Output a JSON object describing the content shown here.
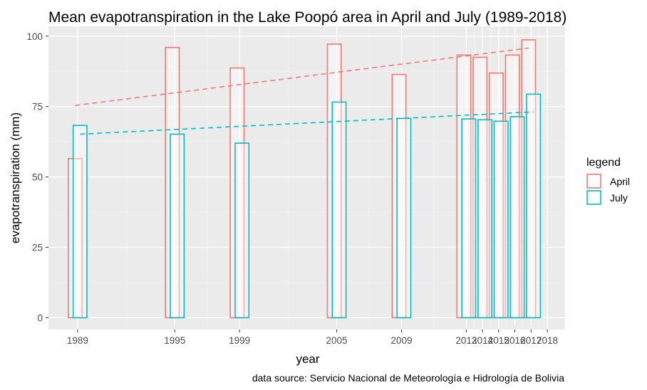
{
  "chart_data": {
    "type": "bar",
    "title": "Mean evapotranspiration in the Lake Poopó area in April and July (1989-2018)",
    "xlabel": "year",
    "ylabel": "evapotranspiration (mm)",
    "caption": "data source: Servicio Nacional de Meteorología e Hidrología de Bolivia",
    "x": [
      1989,
      1995,
      1999,
      2005,
      2009,
      2013,
      2014,
      2015,
      2016,
      2017
    ],
    "xticks": [
      1989,
      1995,
      1999,
      2005,
      2009,
      2013,
      2014,
      2015,
      2016,
      2017,
      2018
    ],
    "xlim": [
      1987.2,
      2019.1
    ],
    "ylim": [
      -4.2,
      103.5
    ],
    "yticks": [
      0,
      25,
      50,
      75,
      100
    ],
    "legend": {
      "title": "legend",
      "position": "right"
    },
    "series": [
      {
        "name": "April",
        "color": "#F8766D",
        "values": [
          56.5,
          96,
          88.7,
          97.2,
          86.4,
          93.3,
          92.5,
          86.9,
          93.3,
          98.7
        ],
        "trend": [
          75.4,
          95.8
        ]
      },
      {
        "name": "July",
        "color": "#00BFC4",
        "values": [
          68.3,
          65.2,
          62,
          76.6,
          70.8,
          70.6,
          70.3,
          69.8,
          71.4,
          79.4
        ],
        "trend": [
          65.2,
          73.1
        ]
      }
    ],
    "trend_style": "dashed",
    "grid": true
  }
}
